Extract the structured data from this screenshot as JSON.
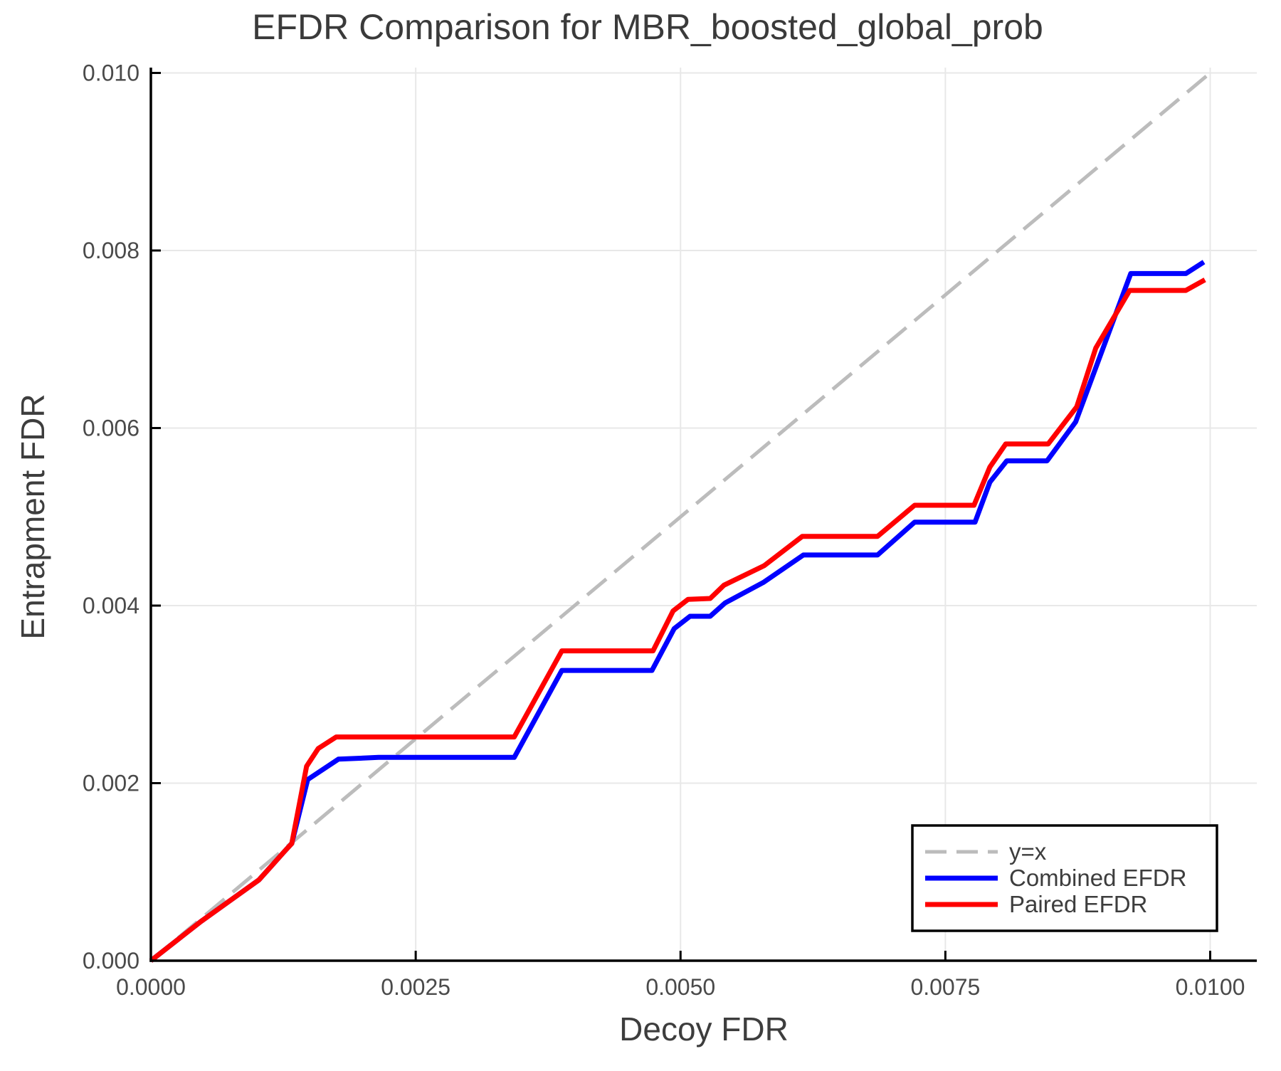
{
  "chart_data": {
    "type": "line",
    "title": "EFDR Comparison for MBR_boosted_global_prob",
    "xlabel": "Decoy FDR",
    "ylabel": "Entrapment FDR",
    "xlim": [
      0,
      0.01044
    ],
    "ylim": [
      0,
      0.01006
    ],
    "grid": true,
    "legend_position": "lower right",
    "xticks": {
      "values": [
        0.0,
        0.0025,
        0.005,
        0.0075,
        0.01
      ],
      "labels": [
        "0.0000",
        "0.0025",
        "0.0050",
        "0.0075",
        "0.0100"
      ]
    },
    "yticks": {
      "values": [
        0.0,
        0.002,
        0.004,
        0.006,
        0.008,
        0.01
      ],
      "labels": [
        "0.000",
        "0.002",
        "0.004",
        "0.006",
        "0.008",
        "0.010"
      ]
    },
    "series": [
      {
        "name": "y=x",
        "color": "#bcbcbc",
        "width": 5,
        "dash": "35 15",
        "legend_dash": "30 14",
        "points": [
          [
            0.0,
            0.0
          ],
          [
            0.01,
            0.01
          ]
        ]
      },
      {
        "name": "Combined EFDR",
        "color": "#0000ff",
        "width": 7,
        "dash": null,
        "legend_dash": null,
        "points": [
          [
            0.0,
            0.0
          ],
          [
            0.00047,
            0.00044
          ],
          [
            0.00102,
            0.00091
          ],
          [
            0.00126,
            0.00123
          ],
          [
            0.00133,
            0.00132
          ],
          [
            0.00148,
            0.00204
          ],
          [
            0.00177,
            0.00227
          ],
          [
            0.00215,
            0.00229
          ],
          [
            0.00343,
            0.00229
          ],
          [
            0.00388,
            0.00327
          ],
          [
            0.00473,
            0.00327
          ],
          [
            0.00494,
            0.00374
          ],
          [
            0.00509,
            0.00388
          ],
          [
            0.00528,
            0.00388
          ],
          [
            0.00542,
            0.00403
          ],
          [
            0.00578,
            0.00426
          ],
          [
            0.00616,
            0.00457
          ],
          [
            0.00686,
            0.00457
          ],
          [
            0.00721,
            0.00494
          ],
          [
            0.00778,
            0.00494
          ],
          [
            0.00792,
            0.00539
          ],
          [
            0.00808,
            0.00563
          ],
          [
            0.00846,
            0.00563
          ],
          [
            0.00873,
            0.00607
          ],
          [
            0.00925,
            0.00774
          ],
          [
            0.00977,
            0.00774
          ],
          [
            0.00994,
            0.00787
          ]
        ]
      },
      {
        "name": "Paired EFDR",
        "color": "#ff0000",
        "width": 7,
        "dash": null,
        "legend_dash": null,
        "points": [
          [
            0.0,
            0.0
          ],
          [
            0.00047,
            0.00044
          ],
          [
            0.00102,
            0.00091
          ],
          [
            0.00126,
            0.00123
          ],
          [
            0.00133,
            0.00132
          ],
          [
            0.00147,
            0.00219
          ],
          [
            0.00158,
            0.00239
          ],
          [
            0.00175,
            0.00252
          ],
          [
            0.00343,
            0.00252
          ],
          [
            0.00388,
            0.00349
          ],
          [
            0.00474,
            0.00349
          ],
          [
            0.00493,
            0.00394
          ],
          [
            0.00507,
            0.00407
          ],
          [
            0.00528,
            0.00408
          ],
          [
            0.00541,
            0.00423
          ],
          [
            0.00579,
            0.00445
          ],
          [
            0.00615,
            0.00478
          ],
          [
            0.00686,
            0.00478
          ],
          [
            0.00721,
            0.00513
          ],
          [
            0.00777,
            0.00513
          ],
          [
            0.00792,
            0.00556
          ],
          [
            0.00807,
            0.00582
          ],
          [
            0.00847,
            0.00582
          ],
          [
            0.00874,
            0.00624
          ],
          [
            0.00892,
            0.0069
          ],
          [
            0.00924,
            0.00755
          ],
          [
            0.00977,
            0.00755
          ],
          [
            0.00995,
            0.00767
          ]
        ]
      }
    ],
    "legend": {
      "entries": [
        "y=x",
        "Combined EFDR",
        "Paired EFDR"
      ]
    }
  },
  "style_colors": {
    "gridline": "#e8e8e8",
    "spine": "#000000",
    "background": "#ffffff",
    "legend_border": "#000000"
  }
}
